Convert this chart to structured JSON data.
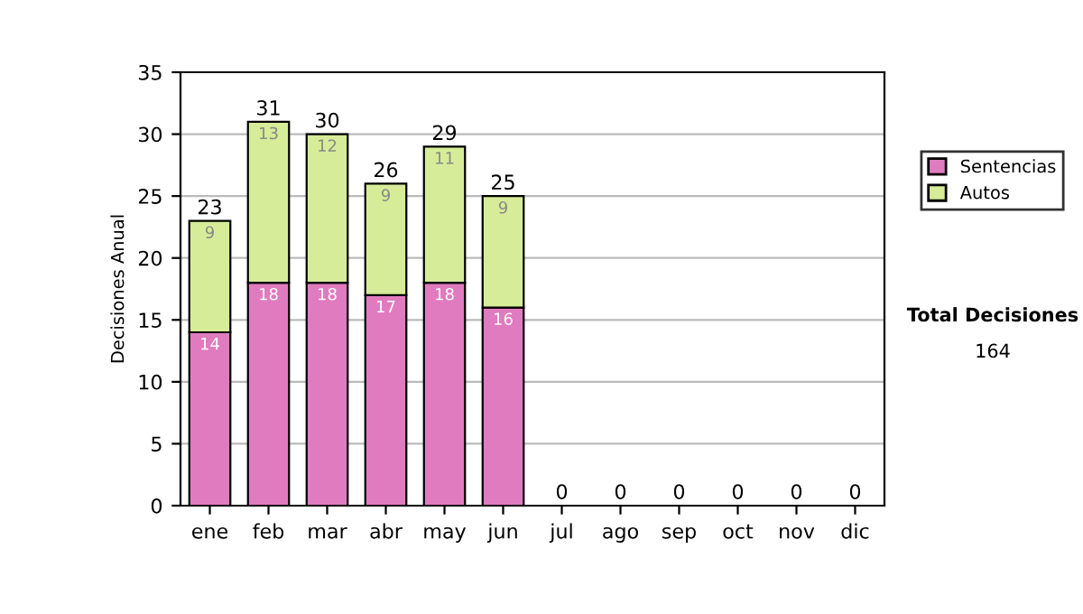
{
  "chart_data": {
    "type": "bar",
    "stacked": true,
    "ylabel": "Decisiones Anual",
    "categories": [
      "ene",
      "feb",
      "mar",
      "abr",
      "may",
      "jun",
      "jul",
      "ago",
      "sep",
      "oct",
      "nov",
      "dic"
    ],
    "series": [
      {
        "name": "Sentencias",
        "color": "#e07bc0",
        "values": [
          14,
          18,
          18,
          17,
          18,
          16,
          0,
          0,
          0,
          0,
          0,
          0
        ],
        "value_labels": [
          "14",
          "18",
          "18",
          "17",
          "18",
          "16",
          null,
          null,
          null,
          null,
          null,
          null
        ]
      },
      {
        "name": "Autos",
        "color": "#d6ec98",
        "values": [
          9,
          13,
          12,
          9,
          11,
          9,
          0,
          0,
          0,
          0,
          0,
          0
        ],
        "value_labels": [
          "9",
          "13",
          "12",
          "9",
          "11",
          "9",
          null,
          null,
          null,
          null,
          null,
          null
        ]
      }
    ],
    "totals": [
      "23",
      "31",
      "30",
      "26",
      "29",
      "25",
      "0",
      "0",
      "0",
      "0",
      "0",
      "0"
    ],
    "ylim": [
      0,
      35
    ],
    "yticks": [
      0,
      5,
      10,
      15,
      20,
      25,
      30,
      35
    ],
    "grid": "y",
    "legend": "right",
    "annotations": [
      "Total Decisiones",
      "164"
    ]
  }
}
